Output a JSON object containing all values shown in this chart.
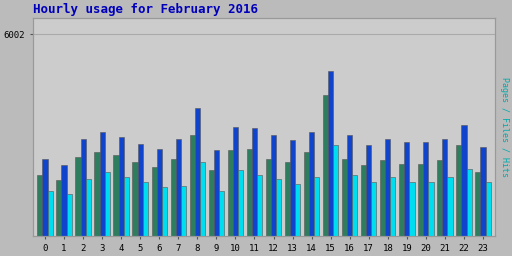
{
  "title": "Hourly usage for February 2016",
  "ylabel": "Pages / Files / Hits",
  "hours": [
    0,
    1,
    2,
    3,
    4,
    5,
    6,
    7,
    8,
    9,
    10,
    11,
    12,
    13,
    14,
    15,
    16,
    17,
    18,
    19,
    20,
    21,
    22,
    23
  ],
  "pages": [
    1800,
    1650,
    2350,
    2500,
    2400,
    2200,
    2050,
    2300,
    3000,
    1950,
    2550,
    2600,
    2300,
    2200,
    2500,
    4200,
    2300,
    2100,
    2250,
    2150,
    2150,
    2250,
    2700,
    1900
  ],
  "files": [
    2300,
    2100,
    2900,
    3100,
    2950,
    2750,
    2600,
    2900,
    3800,
    2550,
    3250,
    3200,
    3000,
    2850,
    3100,
    4900,
    3000,
    2700,
    2900,
    2800,
    2800,
    2900,
    3300,
    2650
  ],
  "hits": [
    1350,
    1250,
    1700,
    1900,
    1750,
    1600,
    1450,
    1500,
    2200,
    1350,
    1950,
    1800,
    1700,
    1550,
    1750,
    2700,
    1800,
    1600,
    1750,
    1600,
    1600,
    1750,
    2000,
    1600
  ],
  "color_pages": "#2e7d5e",
  "color_files": "#1144cc",
  "color_hits": "#00ddee",
  "bg_color": "#bbbbbb",
  "plot_bg": "#cccccc",
  "title_color": "#0000bb",
  "ylabel_color": "#00aaaa",
  "grid_color": "#aaaaaa",
  "ylim": [
    0,
    6500
  ],
  "ytick_val": 6002,
  "ytick_label": "6002",
  "bar_width": 0.27,
  "edgecolor": "#555555"
}
